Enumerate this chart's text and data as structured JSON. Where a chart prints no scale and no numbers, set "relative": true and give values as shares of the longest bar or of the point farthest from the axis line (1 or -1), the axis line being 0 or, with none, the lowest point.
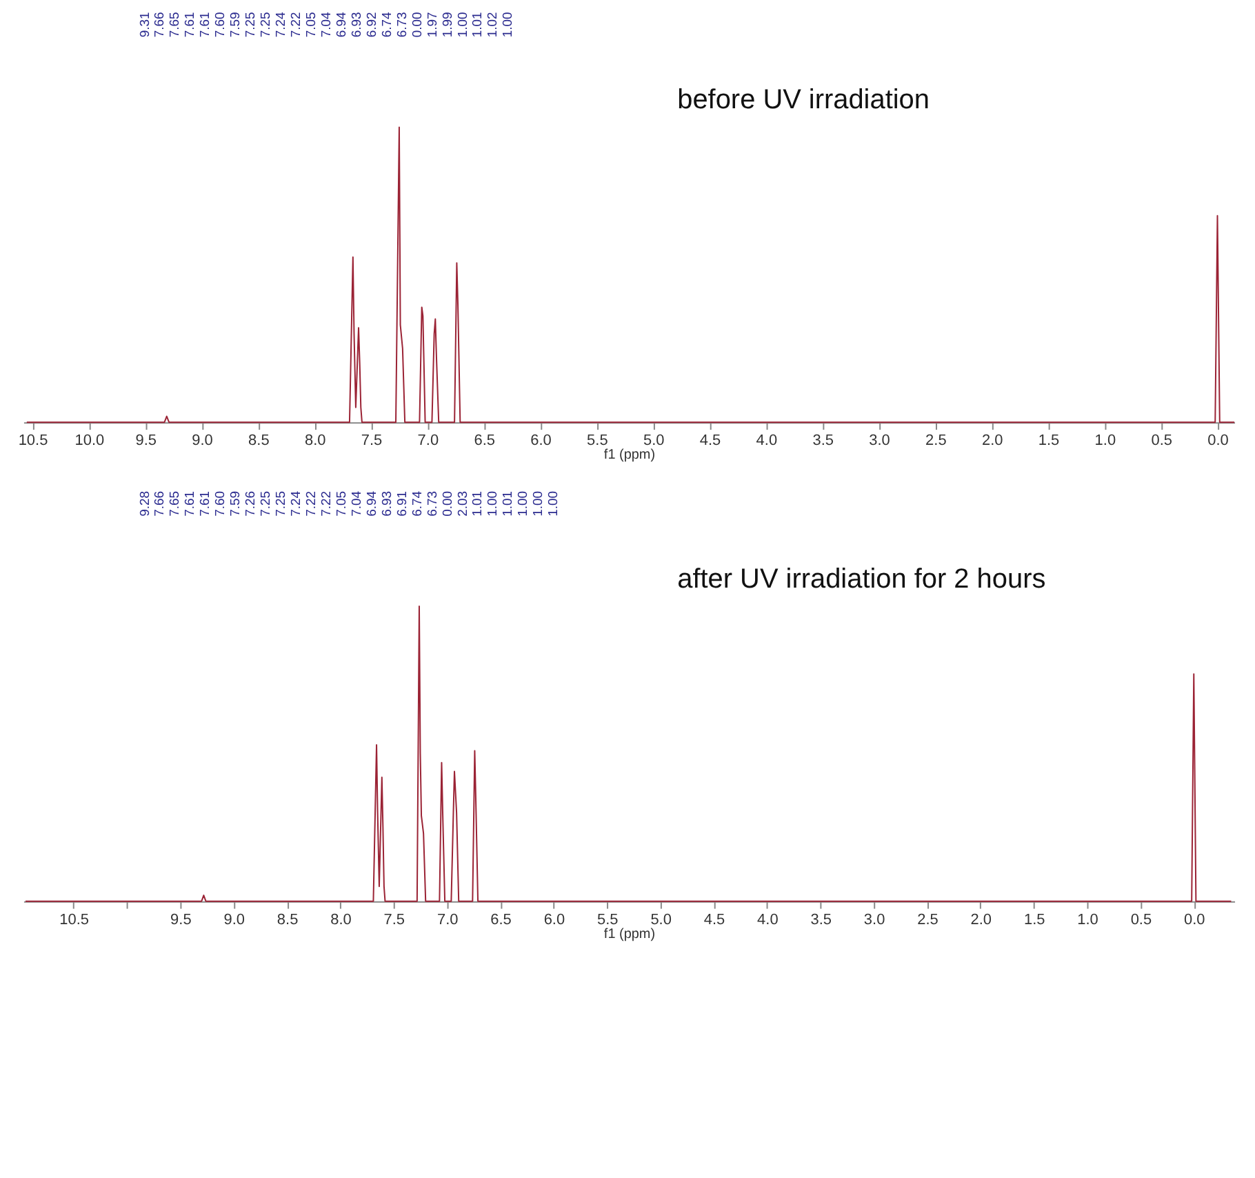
{
  "chart_data": [
    {
      "type": "line",
      "title": "before UV irradiation",
      "xlabel": "f1 (ppm)",
      "relative": true,
      "grid": false,
      "line_style": "solid",
      "xlim": [
        10.58,
        -0.15
      ],
      "xticks": [
        {
          "value": 10.5,
          "label": "10.5"
        },
        {
          "value": 10.0,
          "label": "10.0"
        },
        {
          "value": 9.5,
          "label": "9.5"
        },
        {
          "value": 9.0,
          "label": "9.0"
        },
        {
          "value": 8.5,
          "label": "8.5"
        },
        {
          "value": 8.0,
          "label": "8.0"
        },
        {
          "value": 7.5,
          "label": "7.5"
        },
        {
          "value": 7.0,
          "label": "7.0"
        },
        {
          "value": 6.5,
          "label": "6.5"
        },
        {
          "value": 6.0,
          "label": "6.0"
        },
        {
          "value": 5.5,
          "label": "5.5"
        },
        {
          "value": 5.0,
          "label": "5.0"
        },
        {
          "value": 4.5,
          "label": "4.5"
        },
        {
          "value": 4.0,
          "label": "4.0"
        },
        {
          "value": 3.5,
          "label": "3.5"
        },
        {
          "value": 3.0,
          "label": "3.0"
        },
        {
          "value": 2.5,
          "label": "2.5"
        },
        {
          "value": 2.0,
          "label": "2.0"
        },
        {
          "value": 1.5,
          "label": "1.5"
        },
        {
          "value": 1.0,
          "label": "1.0"
        },
        {
          "value": 0.5,
          "label": "0.5"
        },
        {
          "value": 0.0,
          "label": "0.0"
        }
      ],
      "series": [
        {
          "color": "#9b2335",
          "x": [
            10.55,
            9.33,
            9.31,
            9.29,
            7.69,
            7.66,
            7.65,
            7.635,
            7.61,
            7.6,
            7.59,
            7.58,
            7.28,
            7.25,
            7.24,
            7.22,
            7.2,
            7.07,
            7.05,
            7.04,
            7.02,
            6.96,
            6.94,
            6.93,
            6.92,
            6.9,
            6.76,
            6.74,
            6.73,
            6.71,
            0.02,
            0.0,
            -0.02,
            -0.15
          ],
          "values": [
            0,
            0,
            0.02,
            0,
            0,
            0.56,
            0.3,
            0.05,
            0.32,
            0.2,
            0.05,
            0,
            0,
            1,
            0.33,
            0.25,
            0,
            0,
            0.39,
            0.36,
            0,
            0,
            0.3,
            0.35,
            0.22,
            0,
            0,
            0.54,
            0.4,
            0,
            0,
            0.7,
            0,
            0
          ]
        }
      ],
      "annotations": [
        "9.31",
        "7.66",
        "7.65",
        "7.61",
        "7.61",
        "7.60",
        "7.59",
        "7.25",
        "7.25",
        "7.24",
        "7.22",
        "7.05",
        "7.04",
        "6.94",
        "6.93",
        "6.92",
        "6.74",
        "6.73",
        "0.00",
        "1.97",
        "1.99",
        "1.00",
        "1.01",
        "1.02",
        "1.00"
      ]
    },
    {
      "type": "line",
      "title": "after UV irradiation for 2 hours",
      "xlabel": "f1 (ppm)",
      "relative": true,
      "grid": false,
      "line_style": "solid",
      "xlim": [
        10.97,
        -0.38
      ],
      "xticks": [
        {
          "value": 10.5,
          "label": "10.5"
        },
        {
          "value": 10.0,
          "label": null
        },
        {
          "value": 9.5,
          "label": "9.5"
        },
        {
          "value": 9.0,
          "label": "9.0"
        },
        {
          "value": 8.5,
          "label": "8.5"
        },
        {
          "value": 8.0,
          "label": "8.0"
        },
        {
          "value": 7.5,
          "label": "7.5"
        },
        {
          "value": 7.0,
          "label": "7.0"
        },
        {
          "value": 6.5,
          "label": "6.5"
        },
        {
          "value": 6.0,
          "label": "6.0"
        },
        {
          "value": 5.5,
          "label": "5.5"
        },
        {
          "value": 5.0,
          "label": "5.0"
        },
        {
          "value": 4.5,
          "label": "4.5"
        },
        {
          "value": 4.0,
          "label": "4.0"
        },
        {
          "value": 3.5,
          "label": "3.5"
        },
        {
          "value": 3.0,
          "label": "3.0"
        },
        {
          "value": 2.5,
          "label": "2.5"
        },
        {
          "value": 2.0,
          "label": "2.0"
        },
        {
          "value": 1.5,
          "label": "1.5"
        },
        {
          "value": 1.0,
          "label": "1.0"
        },
        {
          "value": 0.5,
          "label": "0.5"
        },
        {
          "value": 0.0,
          "label": "0.0"
        }
      ],
      "series": [
        {
          "color": "#9b2335",
          "x": [
            10.95,
            9.3,
            9.28,
            9.26,
            7.69,
            7.66,
            7.65,
            7.635,
            7.61,
            7.6,
            7.59,
            7.58,
            7.28,
            7.26,
            7.25,
            7.24,
            7.22,
            7.2,
            7.07,
            7.05,
            7.04,
            7.02,
            6.96,
            6.94,
            6.93,
            6.91,
            6.89,
            6.76,
            6.74,
            6.73,
            6.71,
            0.02,
            0.0,
            -0.02,
            -0.35
          ],
          "values": [
            0,
            0,
            0.02,
            0,
            0,
            0.53,
            0.3,
            0.05,
            0.42,
            0.25,
            0.05,
            0,
            0,
            1,
            0.5,
            0.29,
            0.23,
            0,
            0,
            0.47,
            0.3,
            0,
            0,
            0.3,
            0.44,
            0.3,
            0,
            0,
            0.51,
            0.35,
            0,
            0,
            0.77,
            0,
            0
          ]
        }
      ],
      "annotations": [
        "9.28",
        "7.66",
        "7.65",
        "7.61",
        "7.61",
        "7.60",
        "7.59",
        "7.26",
        "7.25",
        "7.25",
        "7.24",
        "7.22",
        "7.22",
        "7.05",
        "7.04",
        "6.94",
        "6.93",
        "6.91",
        "6.74",
        "6.73",
        "0.00",
        "2.03",
        "1.01",
        "1.00",
        "1.01",
        "1.00",
        "1.00",
        "1.00"
      ]
    }
  ]
}
